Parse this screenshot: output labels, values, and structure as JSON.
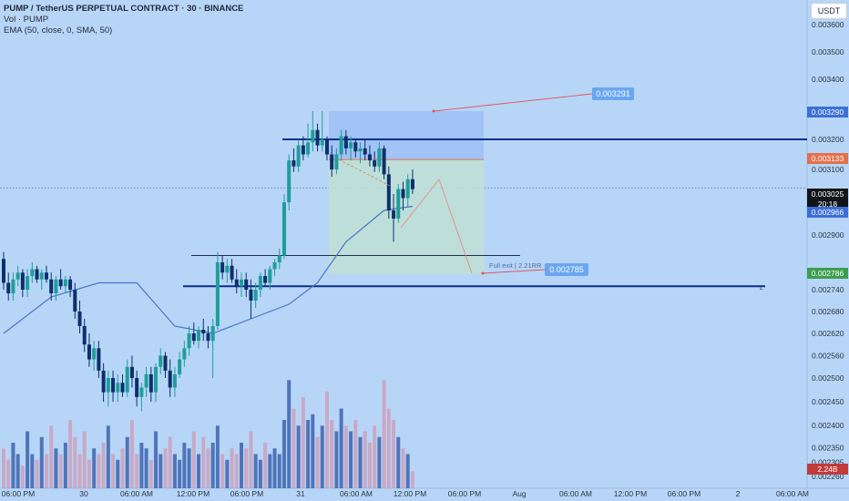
{
  "legend": {
    "title": "PUMP / TetherUS PERPETUAL CONTRACT · 30 · BINANCE",
    "volume": "Vol · PUMP",
    "ema": "EMA (50, close, 0, SMA, 50)"
  },
  "price_scale": {
    "currency_button": "USDT",
    "ticks": [
      "0.003600",
      "0.003500",
      "0.003400",
      "0.003200",
      "0.003100",
      "0.002900",
      "0.002740",
      "0.002680",
      "0.002620",
      "0.002560",
      "0.002500",
      "0.002450",
      "0.002400",
      "0.002350",
      "0.002305",
      "0.002260"
    ],
    "tags": {
      "target": "0.003290",
      "entry": "0.003133",
      "last_price": "0.003025",
      "countdown": "20:18",
      "ema_value": "0.002966",
      "stop": "0.002786",
      "volume": "2.24B"
    }
  },
  "time_axis": {
    "labels": [
      "06:00 PM",
      "30",
      "06:00 AM",
      "12:00 PM",
      "06:00 PM",
      "31",
      "06:00 AM",
      "12:00 PM",
      "06:00 PM",
      "Aug",
      "06:00 AM",
      "12:00 PM",
      "06:00 PM",
      "2",
      "06:00 AM"
    ]
  },
  "annotations": {
    "top_price_label": "0.003291",
    "bottom_price_label": "0.002785",
    "exit_text": "Full exit | 2.21RR",
    "line_end_letter": "L"
  },
  "colors": {
    "background": "#b7d6f7",
    "up_candle": "#1f9e9a",
    "down_candle": "#0c2f6e",
    "ema_line": "#4a74c9",
    "support_lines": "#0b2e8a",
    "target_zone": "#9ebff5",
    "profit_zone": "#bfe0d3",
    "entry_line": "#e2704d",
    "annotation_box": "#6aa6f2"
  },
  "chart_data": {
    "type": "candlestick",
    "symbol": "PUMP / TetherUS PERPETUAL CONTRACT",
    "interval": "30",
    "exchange": "BINANCE",
    "ylim": [
      0.00226,
      0.00362
    ],
    "last_price": 0.003025,
    "candles": [
      [
        0.00283,
        0.00285,
        0.00274,
        0.00276
      ],
      [
        0.00276,
        0.00279,
        0.00271,
        0.00273
      ],
      [
        0.00273,
        0.00279,
        0.00271,
        0.00277
      ],
      [
        0.00277,
        0.00281,
        0.00275,
        0.00279
      ],
      [
        0.00279,
        0.0028,
        0.00272,
        0.00274
      ],
      [
        0.00274,
        0.0028,
        0.00272,
        0.00278
      ],
      [
        0.00278,
        0.00282,
        0.00276,
        0.0028
      ],
      [
        0.0028,
        0.00281,
        0.00276,
        0.00277
      ],
      [
        0.00277,
        0.0028,
        0.00274,
        0.00279
      ],
      [
        0.00279,
        0.00281,
        0.00276,
        0.00277
      ],
      [
        0.00277,
        0.00279,
        0.00271,
        0.00273
      ],
      [
        0.00273,
        0.00278,
        0.00271,
        0.00277
      ],
      [
        0.00277,
        0.0028,
        0.00274,
        0.00275
      ],
      [
        0.00275,
        0.00278,
        0.00273,
        0.00277
      ],
      [
        0.00277,
        0.00278,
        0.00272,
        0.00274
      ],
      [
        0.00274,
        0.00276,
        0.00266,
        0.00268
      ],
      [
        0.00268,
        0.00271,
        0.00262,
        0.00264
      ],
      [
        0.00264,
        0.00266,
        0.00257,
        0.00259
      ],
      [
        0.00259,
        0.00262,
        0.00253,
        0.00255
      ],
      [
        0.00255,
        0.0026,
        0.00252,
        0.00258
      ],
      [
        0.00258,
        0.0026,
        0.0025,
        0.00252
      ],
      [
        0.00252,
        0.00254,
        0.00245,
        0.00247
      ],
      [
        0.00247,
        0.00252,
        0.00244,
        0.0025
      ],
      [
        0.0025,
        0.00252,
        0.00245,
        0.00247
      ],
      [
        0.00247,
        0.00251,
        0.00245,
        0.00249
      ],
      [
        0.00249,
        0.00251,
        0.00246,
        0.00247
      ],
      [
        0.00247,
        0.00255,
        0.00246,
        0.00253
      ],
      [
        0.00253,
        0.00256,
        0.00248,
        0.0025
      ],
      [
        0.0025,
        0.00252,
        0.00244,
        0.00246
      ],
      [
        0.00246,
        0.00249,
        0.00243,
        0.00248
      ],
      [
        0.00248,
        0.00253,
        0.00246,
        0.00251
      ],
      [
        0.00251,
        0.00253,
        0.00245,
        0.00247
      ],
      [
        0.00247,
        0.00254,
        0.00245,
        0.00253
      ],
      [
        0.00253,
        0.00258,
        0.00251,
        0.00256
      ],
      [
        0.00256,
        0.00257,
        0.0025,
        0.00252
      ],
      [
        0.00252,
        0.00255,
        0.00246,
        0.00248
      ],
      [
        0.00248,
        0.00253,
        0.00246,
        0.00251
      ],
      [
        0.00251,
        0.00257,
        0.0025,
        0.00255
      ],
      [
        0.00255,
        0.0026,
        0.00253,
        0.00258
      ],
      [
        0.00258,
        0.00264,
        0.00256,
        0.00262
      ],
      [
        0.00262,
        0.00265,
        0.00259,
        0.0026
      ],
      [
        0.0026,
        0.00264,
        0.00258,
        0.00263
      ],
      [
        0.00263,
        0.00266,
        0.0026,
        0.00262
      ],
      [
        0.00262,
        0.00264,
        0.00258,
        0.0026
      ],
      [
        0.0026,
        0.00266,
        0.0025,
        0.00264
      ],
      [
        0.00264,
        0.00285,
        0.00263,
        0.00282
      ],
      [
        0.00282,
        0.00284,
        0.00277,
        0.00279
      ],
      [
        0.00279,
        0.00283,
        0.00276,
        0.00281
      ],
      [
        0.00281,
        0.00283,
        0.00276,
        0.00277
      ],
      [
        0.00277,
        0.0028,
        0.00273,
        0.00275
      ],
      [
        0.00275,
        0.00279,
        0.00272,
        0.00277
      ],
      [
        0.00277,
        0.00279,
        0.00272,
        0.00274
      ],
      [
        0.00274,
        0.00277,
        0.00266,
        0.00271
      ],
      [
        0.00271,
        0.00276,
        0.00269,
        0.00274
      ],
      [
        0.00274,
        0.00279,
        0.00272,
        0.00278
      ],
      [
        0.00278,
        0.0028,
        0.00275,
        0.00276
      ],
      [
        0.00276,
        0.00281,
        0.00274,
        0.0028
      ],
      [
        0.0028,
        0.00283,
        0.00278,
        0.00282
      ],
      [
        0.00282,
        0.00286,
        0.0028,
        0.00284
      ],
      [
        0.00284,
        0.003,
        0.00283,
        0.00298
      ],
      [
        0.00298,
        0.00315,
        0.00296,
        0.00313
      ],
      [
        0.00313,
        0.00317,
        0.00309,
        0.00311
      ],
      [
        0.00311,
        0.0032,
        0.00309,
        0.00318
      ],
      [
        0.00318,
        0.00321,
        0.00313,
        0.00315
      ],
      [
        0.00315,
        0.00325,
        0.00314,
        0.00319
      ],
      [
        0.00319,
        0.00329,
        0.00316,
        0.00323
      ],
      [
        0.00323,
        0.00325,
        0.00316,
        0.00318
      ],
      [
        0.00318,
        0.00329,
        0.00316,
        0.0032
      ],
      [
        0.0032,
        0.00321,
        0.00313,
        0.00315
      ],
      [
        0.00315,
        0.00318,
        0.00307,
        0.0031
      ],
      [
        0.0031,
        0.00317,
        0.00308,
        0.00315
      ],
      [
        0.00315,
        0.00323,
        0.00313,
        0.00321
      ],
      [
        0.00321,
        0.00323,
        0.00315,
        0.00317
      ],
      [
        0.00317,
        0.00321,
        0.00313,
        0.00319
      ],
      [
        0.00319,
        0.0032,
        0.00314,
        0.00316
      ],
      [
        0.00316,
        0.00319,
        0.00312,
        0.00317
      ],
      [
        0.00317,
        0.0032,
        0.00313,
        0.00315
      ],
      [
        0.00315,
        0.00318,
        0.00311,
        0.00313
      ],
      [
        0.00313,
        0.00316,
        0.00309,
        0.00311
      ],
      [
        0.00311,
        0.00319,
        0.00309,
        0.00317
      ],
      [
        0.00317,
        0.00318,
        0.00306,
        0.00308
      ],
      [
        0.00308,
        0.00311,
        0.00294,
        0.00296
      ],
      [
        0.00296,
        0.003,
        0.00288,
        0.00294
      ],
      [
        0.00294,
        0.00304,
        0.00293,
        0.00302
      ],
      [
        0.00302,
        0.00305,
        0.00296,
        0.00299
      ],
      [
        0.00299,
        0.00308,
        0.00297,
        0.00306
      ],
      [
        0.00306,
        0.0031,
        0.003,
        0.00302
      ]
    ],
    "volume_rel": [
      0.35,
      0.25,
      0.4,
      0.3,
      0.2,
      0.5,
      0.3,
      0.25,
      0.45,
      0.3,
      0.55,
      0.35,
      0.3,
      0.4,
      0.6,
      0.45,
      0.3,
      0.5,
      0.25,
      0.35,
      0.3,
      0.4,
      0.55,
      0.3,
      0.25,
      0.35,
      0.45,
      0.6,
      0.3,
      0.4,
      0.35,
      0.25,
      0.5,
      0.3,
      0.35,
      0.45,
      0.3,
      0.25,
      0.4,
      0.35,
      0.5,
      0.3,
      0.45,
      0.35,
      0.4,
      0.55,
      0.3,
      0.25,
      0.35,
      0.3,
      0.4,
      0.35,
      0.5,
      0.3,
      0.25,
      0.4,
      0.3,
      0.35,
      0.3,
      0.6,
      0.95,
      0.7,
      0.55,
      0.8,
      0.6,
      0.65,
      0.45,
      0.55,
      0.85,
      0.6,
      0.5,
      0.7,
      0.55,
      0.5,
      0.6,
      0.45,
      0.5,
      0.4,
      0.55,
      0.45,
      0.95,
      0.7,
      0.6,
      0.45,
      0.35,
      0.3,
      0.15
    ],
    "ema_samples": [
      [
        0,
        0.00262
      ],
      [
        10,
        0.00272
      ],
      [
        20,
        0.00276
      ],
      [
        28,
        0.00276
      ],
      [
        36,
        0.00264
      ],
      [
        44,
        0.00262
      ],
      [
        52,
        0.00266
      ],
      [
        60,
        0.0027
      ],
      [
        66,
        0.00276
      ],
      [
        72,
        0.00288
      ],
      [
        80,
        0.00296
      ],
      [
        86,
        0.00297
      ]
    ],
    "support_levels": [
      0.0032,
      0.00284,
      0.00275
    ],
    "position": {
      "target": 0.00329,
      "entry": 0.003133,
      "stop": 0.002786,
      "label": "Full exit | 2.21RR"
    }
  }
}
